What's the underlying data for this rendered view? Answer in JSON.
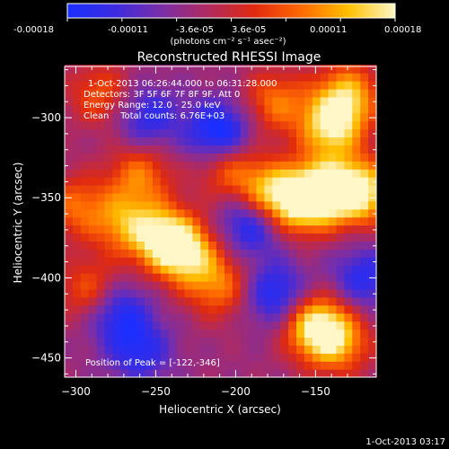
{
  "colorbar": {
    "tick_labels": [
      "-0.00018",
      "-0.00011",
      "-3.6e-05",
      "3.6e-05",
      "0.00011",
      "0.00018"
    ],
    "unit_label": "(photons cm⁻² s⁻¹ asec⁻²)",
    "colors": [
      "#1a2fff",
      "#3b2be0",
      "#7a2ea8",
      "#b02a60",
      "#e02a10",
      "#ff6a00",
      "#ffc000",
      "#fff7c8"
    ]
  },
  "chart_data": {
    "type": "heatmap",
    "title": "Reconstructed RHESSI Image",
    "xlabel": "Heliocentric X (arcsec)",
    "ylabel": "Heliocentric Y (arcsec)",
    "xlim": [
      -307,
      -112
    ],
    "ylim": [
      -462,
      -268
    ],
    "x_ticks": [
      -300,
      -250,
      -200,
      -150
    ],
    "y_ticks": [
      -300,
      -350,
      -400,
      -450
    ],
    "annotations": [
      "1-Oct-2013 06:26:44.000 to 06:31:28.000",
      "Detectors: 3F 5F 6F 7F 8F 9F, Att 0",
      "Energy Range: 12.0 - 25.0 keV",
      "Clean    Total counts: 6.76E+03"
    ],
    "peak_label": "Position of Peak = [-122,-346]",
    "peak_position": [
      -122,
      -346
    ],
    "sources": [
      {
        "x": -205,
        "y": -330,
        "amplitude": 0.55
      },
      {
        "x": -180,
        "y": -348,
        "amplitude": 0.8
      },
      {
        "x": -160,
        "y": -353,
        "amplitude": 0.75
      },
      {
        "x": -145,
        "y": -345,
        "amplitude": 0.85
      },
      {
        "x": -122,
        "y": -346,
        "amplitude": 1.0
      },
      {
        "x": -140,
        "y": -305,
        "amplitude": 0.9
      },
      {
        "x": -130,
        "y": -285,
        "amplitude": 0.7
      },
      {
        "x": -175,
        "y": -290,
        "amplitude": 0.55
      },
      {
        "x": -260,
        "y": -335,
        "amplitude": 0.55
      },
      {
        "x": -245,
        "y": -375,
        "amplitude": 0.9
      },
      {
        "x": -230,
        "y": -385,
        "amplitude": 0.75
      },
      {
        "x": -270,
        "y": -365,
        "amplitude": 0.6
      },
      {
        "x": -300,
        "y": -355,
        "amplitude": 0.5
      },
      {
        "x": -290,
        "y": -408,
        "amplitude": 0.55
      },
      {
        "x": -210,
        "y": -405,
        "amplitude": 0.55
      },
      {
        "x": -150,
        "y": -430,
        "amplitude": 0.95
      },
      {
        "x": -135,
        "y": -440,
        "amplitude": 0.6
      },
      {
        "x": -285,
        "y": -285,
        "amplitude": 0.45
      }
    ],
    "negative_regions": [
      {
        "x": -210,
        "y": -310,
        "amplitude": -0.8
      },
      {
        "x": -255,
        "y": -300,
        "amplitude": -0.5
      },
      {
        "x": -190,
        "y": -365,
        "amplitude": -0.7
      },
      {
        "x": -275,
        "y": -420,
        "amplitude": -0.6
      },
      {
        "x": -175,
        "y": -410,
        "amplitude": -0.6
      },
      {
        "x": -120,
        "y": -400,
        "amplitude": -0.5
      },
      {
        "x": -260,
        "y": -445,
        "amplitude": -0.5
      }
    ]
  },
  "footer": {
    "timestamp": "1-Oct-2013 03:17"
  }
}
